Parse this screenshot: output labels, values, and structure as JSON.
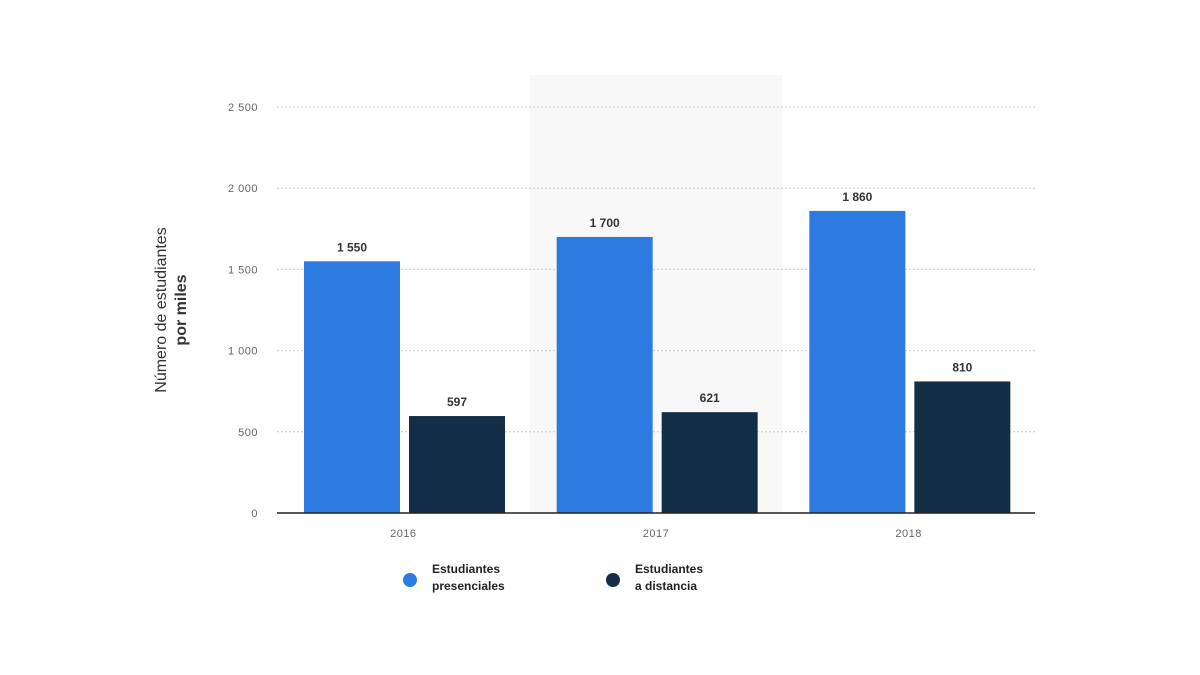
{
  "chart_data": {
    "type": "bar",
    "title": "",
    "xlabel": "",
    "ylabel": [
      "Número de estudiantes",
      "por miles"
    ],
    "categories": [
      "2016",
      "2017",
      "2018"
    ],
    "series": [
      {
        "name": [
          "Estudiantes",
          "presenciales"
        ],
        "color": "#2d7be0",
        "values": [
          1550,
          1700,
          1860
        ],
        "labels": [
          "1 550",
          "1 700",
          "1 860"
        ]
      },
      {
        "name": [
          "Estudiantes",
          "a distancia"
        ],
        "color": "#152e48",
        "values": [
          597,
          621,
          810
        ],
        "labels": [
          "597",
          "621",
          "810"
        ]
      }
    ],
    "ylim": [
      0,
      2500
    ],
    "yticks": [
      0,
      500,
      1000,
      1500,
      2000,
      2500
    ],
    "ytick_labels": [
      "0",
      "500",
      "1 000",
      "1 500",
      "2 000",
      "2 500"
    ],
    "highlighted_category": "2017",
    "grid": true,
    "legend_position": "bottom"
  }
}
